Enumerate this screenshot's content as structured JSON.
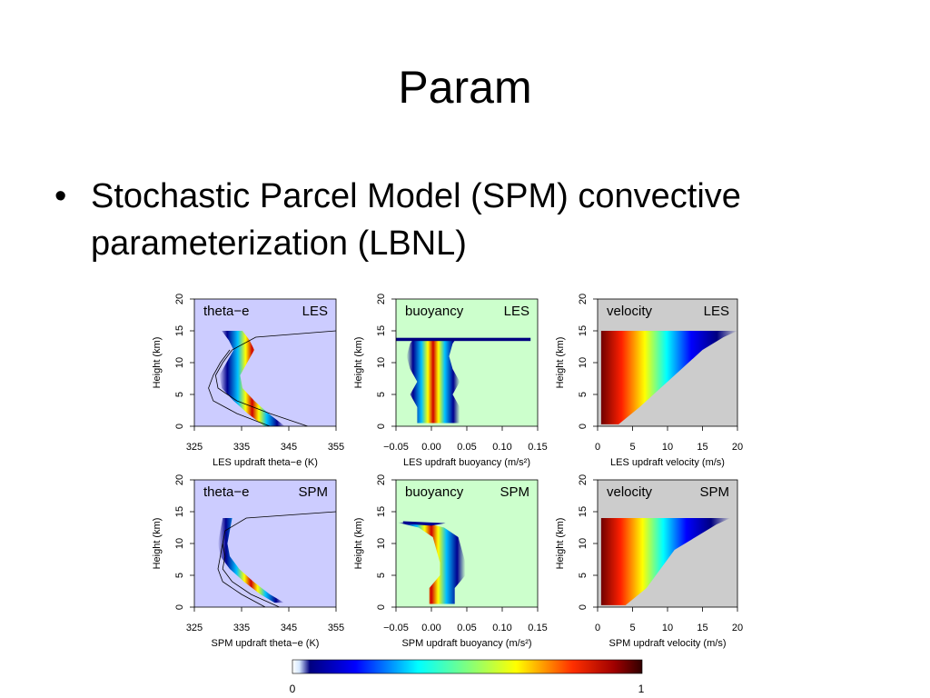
{
  "slide": {
    "title": "Param",
    "bullet": "Stochastic Parcel Model (SPM) convective parameterization (LBNL)"
  },
  "colorbar": {
    "min_label": "0",
    "max_label": "1"
  },
  "chart_data": [
    {
      "type": "heatmap",
      "panel": "theta-e LES",
      "label": "theta−e",
      "source": "LES",
      "xlabel": "LES updraft theta−e (K)",
      "ylabel": "Height (km)",
      "xticks": [
        "325",
        "335",
        "345",
        "355"
      ],
      "xlim": [
        325,
        355
      ],
      "yticks": [
        "0",
        "5",
        "10",
        "15",
        "20"
      ],
      "ylim": [
        0,
        20
      ],
      "background": "#ccccff"
    },
    {
      "type": "heatmap",
      "panel": "buoyancy LES",
      "label": "buoyancy",
      "source": "LES",
      "xlabel": "LES updraft buoyancy",
      "xunit": "(m/s²)",
      "ylabel": "Height (km)",
      "xticks": [
        "−0.05",
        "0.00",
        "0.05",
        "0.10",
        "0.15"
      ],
      "xlim": [
        -0.05,
        0.15
      ],
      "yticks": [
        "0",
        "5",
        "10",
        "15",
        "20"
      ],
      "ylim": [
        0,
        20
      ],
      "background": "#ccffcc"
    },
    {
      "type": "heatmap",
      "panel": "velocity LES",
      "label": "velocity",
      "source": "LES",
      "xlabel": "LES updraft velocity (m/s)",
      "ylabel": "Height (km)",
      "xticks": [
        "0",
        "5",
        "10",
        "15",
        "20"
      ],
      "xlim": [
        0,
        20
      ],
      "yticks": [
        "0",
        "5",
        "10",
        "15",
        "20"
      ],
      "ylim": [
        0,
        20
      ],
      "background": "#cccccc"
    },
    {
      "type": "heatmap",
      "panel": "theta-e SPM",
      "label": "theta−e",
      "source": "SPM",
      "xlabel": "SPM updraft theta−e (K)",
      "ylabel": "Height (km)",
      "xticks": [
        "325",
        "335",
        "345",
        "355"
      ],
      "xlim": [
        325,
        355
      ],
      "yticks": [
        "0",
        "5",
        "10",
        "15",
        "20"
      ],
      "ylim": [
        0,
        20
      ],
      "background": "#ccccff"
    },
    {
      "type": "heatmap",
      "panel": "buoyancy SPM",
      "label": "buoyancy",
      "source": "SPM",
      "xlabel": "SPM updraft buoyancy",
      "xunit": "(m/s²)",
      "ylabel": "Height (km)",
      "xticks": [
        "−0.05",
        "0.00",
        "0.05",
        "0.10",
        "0.15"
      ],
      "xlim": [
        -0.05,
        0.15
      ],
      "yticks": [
        "0",
        "5",
        "10",
        "15",
        "20"
      ],
      "ylim": [
        0,
        20
      ],
      "background": "#ccffcc"
    },
    {
      "type": "heatmap",
      "panel": "velocity SPM",
      "label": "velocity",
      "source": "SPM",
      "xlabel": "SPM updraft velocity (m/s)",
      "ylabel": "Height (km)",
      "xticks": [
        "0",
        "5",
        "10",
        "15",
        "20"
      ],
      "xlim": [
        0,
        20
      ],
      "yticks": [
        "0",
        "5",
        "10",
        "15",
        "20"
      ],
      "ylim": [
        0,
        20
      ],
      "background": "#cccccc"
    }
  ]
}
